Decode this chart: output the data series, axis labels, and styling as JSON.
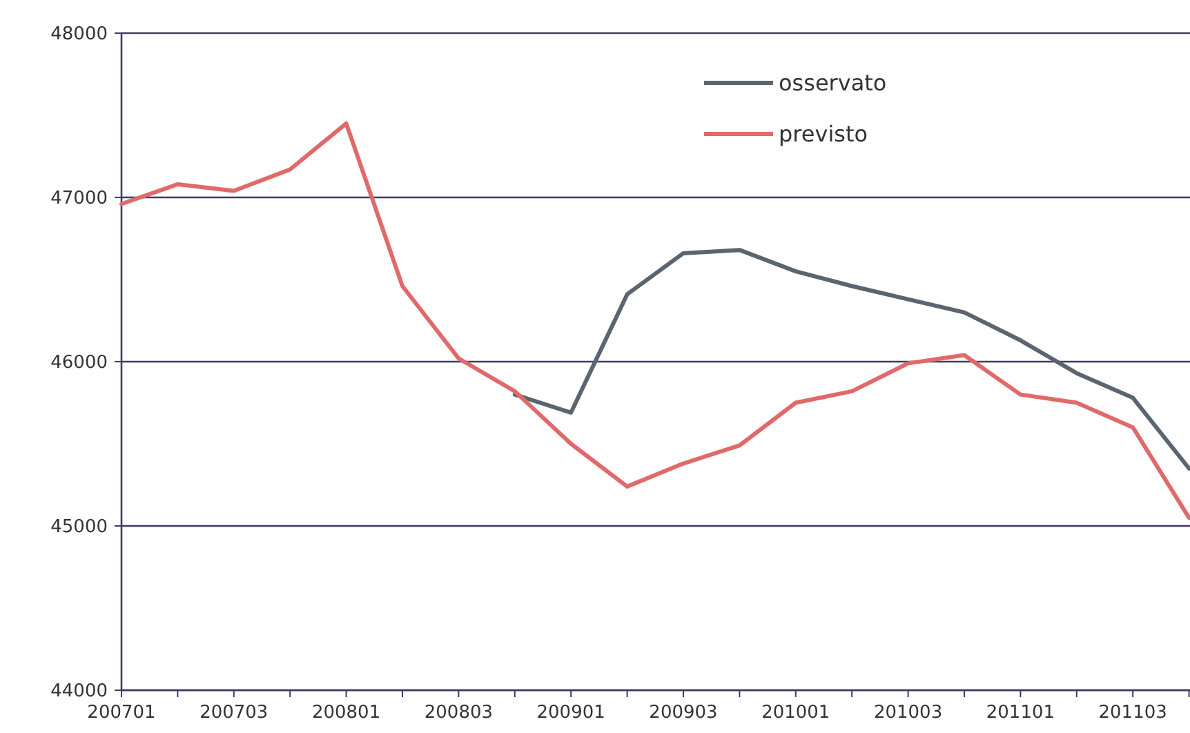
{
  "chart_data": {
    "type": "line",
    "categories": [
      "200701",
      null,
      "200703",
      null,
      "200801",
      null,
      "200803",
      null,
      "200901",
      null,
      "200903",
      null,
      "201001",
      null,
      "201003",
      null,
      "201101",
      null,
      "201103",
      null
    ],
    "series": [
      {
        "name": "osservato",
        "color": "#5b6570",
        "values": [
          null,
          null,
          null,
          null,
          null,
          null,
          null,
          45800,
          45690,
          46410,
          46660,
          46680,
          46550,
          46460,
          46380,
          46300,
          46130,
          45930,
          45780,
          45350
        ]
      },
      {
        "name": "previsto",
        "color": "#e06a6a",
        "values": [
          46960,
          47080,
          47040,
          47170,
          47450,
          46460,
          46020,
          45820,
          45500,
          45240,
          45380,
          45490,
          45750,
          45820,
          45990,
          46040,
          45800,
          45750,
          45600,
          45050
        ]
      }
    ],
    "ylim": [
      44000,
      48000
    ],
    "yticks": [
      44000,
      45000,
      46000,
      47000,
      48000
    ],
    "grid": "y",
    "legend": "top right",
    "marker": "none",
    "line_style": "solid"
  }
}
